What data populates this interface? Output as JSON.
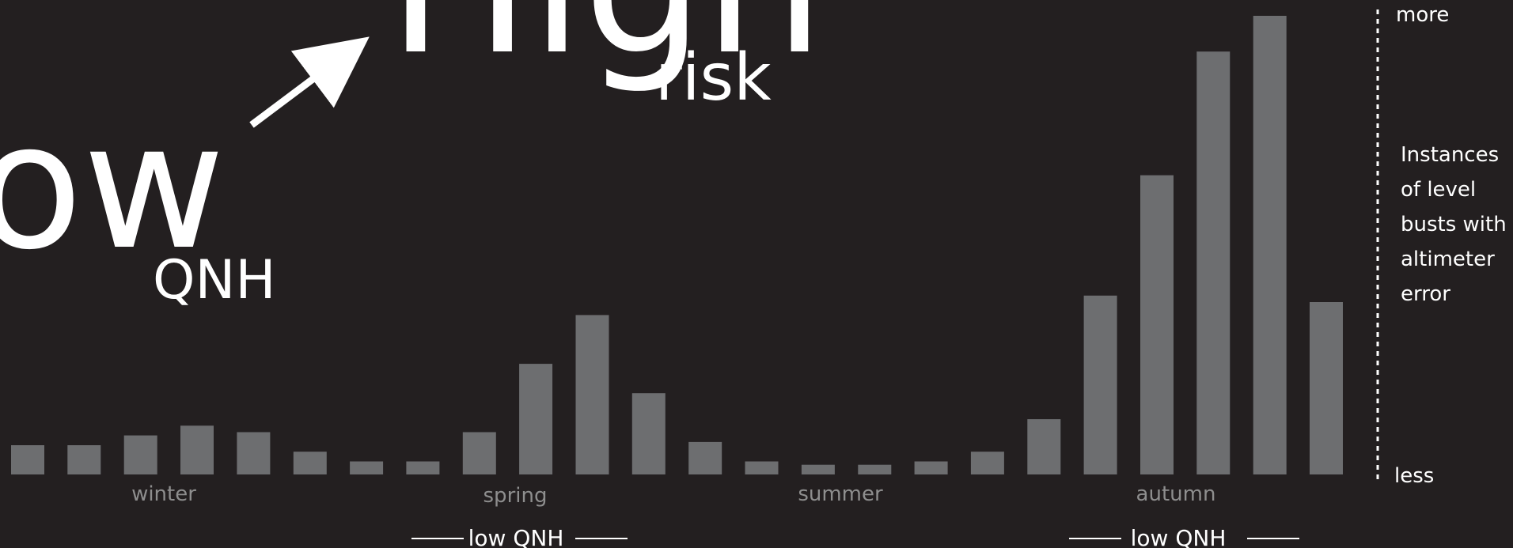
{
  "headline": {
    "low_word": "ow",
    "low_sub": "QNH",
    "high_word": "High",
    "high_sub": "risk"
  },
  "colors": {
    "background": "#231f20",
    "bar": "#6d6e70",
    "text": "#ffffff",
    "season_text": "#8e8e8e"
  },
  "chart_data": {
    "type": "bar",
    "values": [
      9,
      9,
      12,
      15,
      13,
      7,
      4,
      4,
      13,
      34,
      49,
      25,
      10,
      4,
      3,
      3,
      4,
      7,
      17,
      55,
      92,
      130,
      141,
      53
    ],
    "ylim": [
      0,
      141
    ],
    "seasons": [
      "winter",
      "spring",
      "summer",
      "autumn"
    ],
    "low_qnh_label": "low QNH",
    "axis": {
      "top_label": "more",
      "bottom_label": "less",
      "title_lines": [
        "Instances",
        "of level",
        "busts with",
        "altimeter",
        "error"
      ]
    },
    "grid": false
  }
}
